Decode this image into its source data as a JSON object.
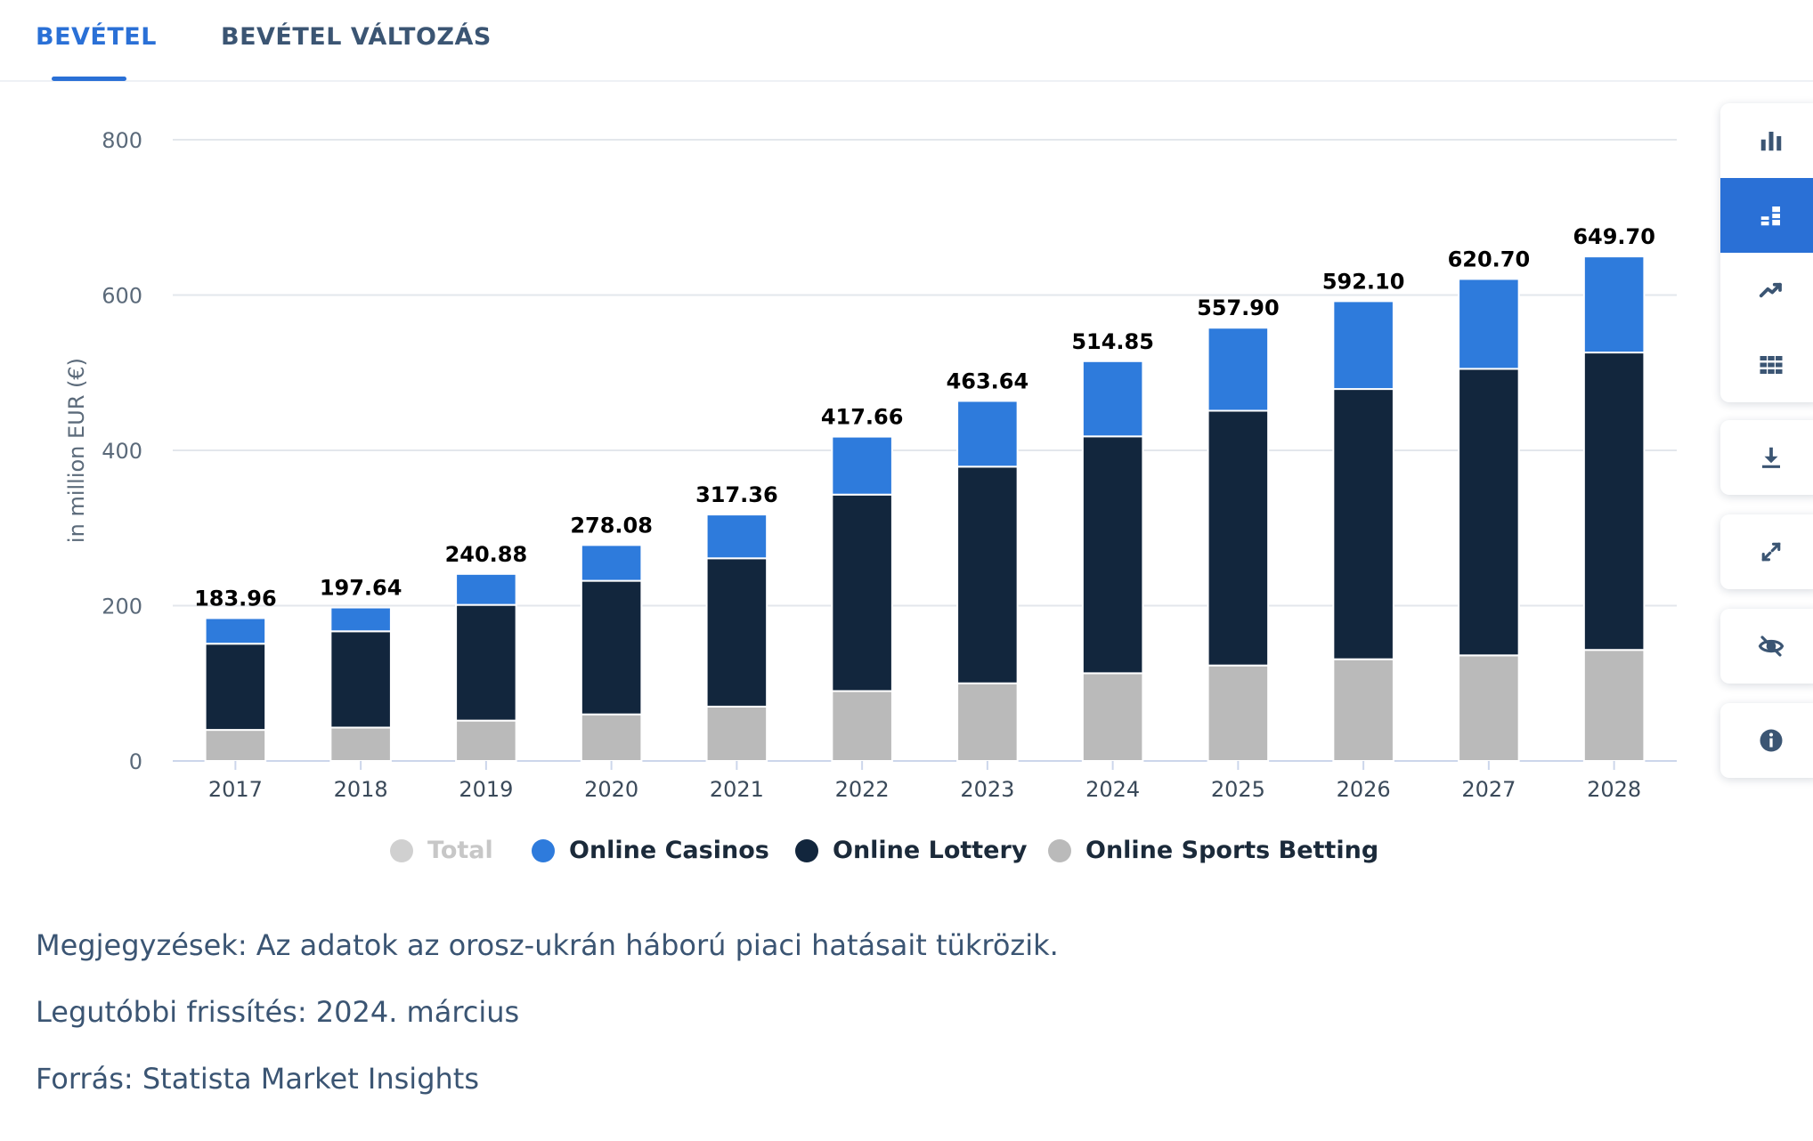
{
  "tabs": [
    {
      "label": "BEVÉTEL",
      "active": true
    },
    {
      "label": "BEVÉTEL VÁLTOZÁS",
      "active": false
    }
  ],
  "chart_data": {
    "type": "bar",
    "stacked": true,
    "categories": [
      "2017",
      "2018",
      "2019",
      "2020",
      "2021",
      "2022",
      "2023",
      "2024",
      "2025",
      "2026",
      "2027",
      "2028"
    ],
    "ylabel": "in million EUR (€)",
    "ylim": [
      0,
      800
    ],
    "yticks": [
      0,
      200,
      400,
      600,
      800
    ],
    "grid": true,
    "legend_position": "bottom",
    "series": [
      {
        "name": "Online Sports Betting",
        "color": "#bababa",
        "values": [
          40,
          43,
          52,
          60,
          70,
          90,
          100,
          113,
          123,
          131,
          136,
          143
        ]
      },
      {
        "name": "Online Lottery",
        "color": "#12263d",
        "values": [
          111,
          124,
          149,
          172,
          191,
          253,
          279,
          305,
          328,
          348,
          369,
          383
        ]
      },
      {
        "name": "Online Casinos",
        "color": "#2e7bdc",
        "values": [
          32.96,
          30.64,
          39.88,
          46.08,
          56.36,
          74.66,
          84.64,
          96.85,
          106.9,
          113.1,
          115.7,
          123.7
        ]
      }
    ],
    "totals_labels": [
      "183.96",
      "197.64",
      "240.88",
      "278.08",
      "317.36",
      "417.66",
      "463.64",
      "514.85",
      "557.90",
      "592.10",
      "620.70",
      "649.70"
    ],
    "legend": [
      {
        "name": "Total",
        "color": "#d0d0d0",
        "muted": true
      },
      {
        "name": "Online Casinos",
        "color": "#2e7bdc",
        "muted": false
      },
      {
        "name": "Online Lottery",
        "color": "#12263d",
        "muted": false
      },
      {
        "name": "Online Sports Betting",
        "color": "#bababa",
        "muted": false
      }
    ]
  },
  "notes": {
    "remarks": "Megjegyzések: Az adatok az orosz-ukrán háború piaci hatásait tükrözik.",
    "updated": "Legutóbbi frissítés: 2024. március",
    "source": "Forrás: Statista Market Insights"
  },
  "toolbar": {
    "chart_types": [
      "bar-chart-icon",
      "stacked-bar-icon",
      "line-chart-icon",
      "table-icon"
    ],
    "active_chart_type": "stacked-bar-icon",
    "actions": [
      "download-icon",
      "fullscreen-icon",
      "hide-icon",
      "info-icon"
    ]
  }
}
